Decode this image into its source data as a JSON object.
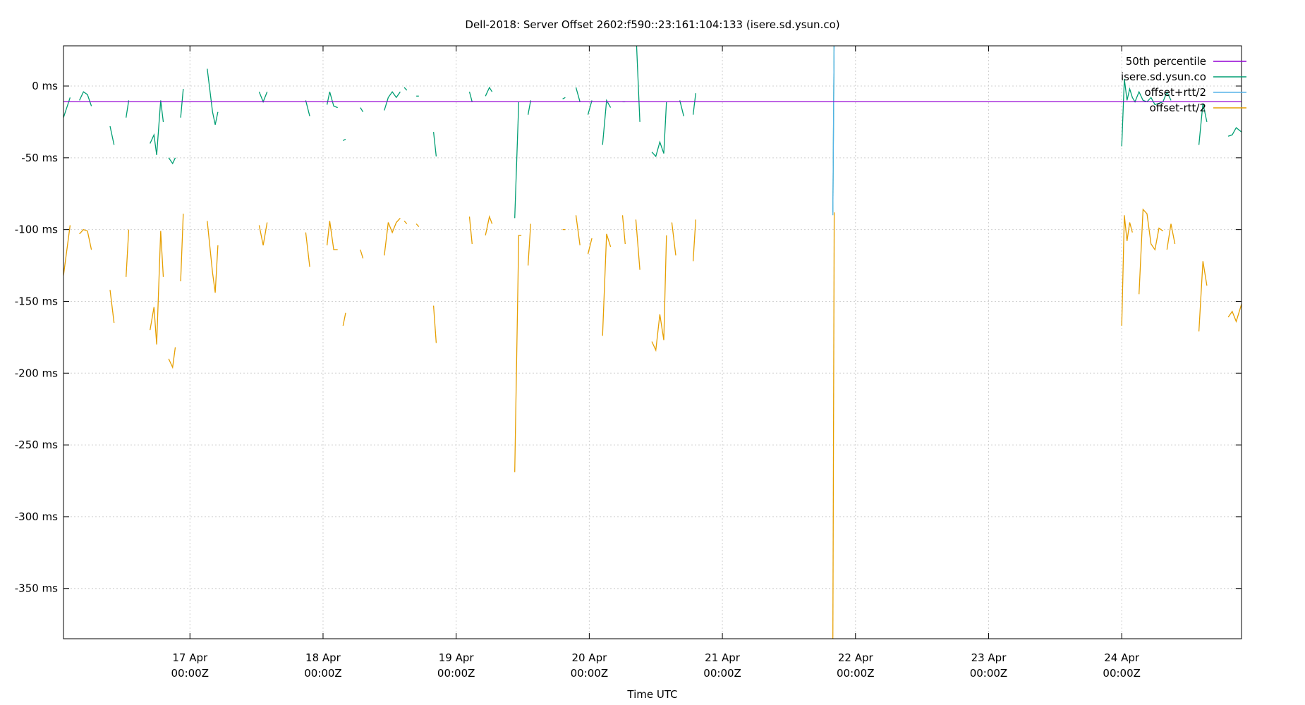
{
  "chart_data": {
    "type": "line",
    "title": "Dell-2018: Server Offset 2602:f590::23:161:104:133 (isere.sd.ysun.co)",
    "xlabel": "Time UTC",
    "ylabel": "",
    "grid": true,
    "legend_position": "top-right",
    "x_domain_days": [
      -0.95,
      7.9
    ],
    "ylim": [
      -385,
      28
    ],
    "y_ticks": [
      {
        "v": 0,
        "label": "0 ms"
      },
      {
        "v": -50,
        "label": "-50 ms"
      },
      {
        "v": -100,
        "label": "-100 ms"
      },
      {
        "v": -150,
        "label": "-150 ms"
      },
      {
        "v": -200,
        "label": "-200 ms"
      },
      {
        "v": -250,
        "label": "-250 ms"
      },
      {
        "v": -300,
        "label": "-300 ms"
      },
      {
        "v": -350,
        "label": "-350 ms"
      }
    ],
    "x_ticks": [
      {
        "v": 0,
        "line1": "17 Apr",
        "line2": "00:00Z"
      },
      {
        "v": 1,
        "line1": "18 Apr",
        "line2": "00:00Z"
      },
      {
        "v": 2,
        "line1": "19 Apr",
        "line2": "00:00Z"
      },
      {
        "v": 3,
        "line1": "20 Apr",
        "line2": "00:00Z"
      },
      {
        "v": 4,
        "line1": "21 Apr",
        "line2": "00:00Z"
      },
      {
        "v": 5,
        "line1": "22 Apr",
        "line2": "00:00Z"
      },
      {
        "v": 6,
        "line1": "23 Apr",
        "line2": "00:00Z"
      },
      {
        "v": 7,
        "line1": "24 Apr",
        "line2": "00:00Z"
      }
    ],
    "series": [
      {
        "name": "50th percentile",
        "color": "#9400d3",
        "segments": [
          [
            [
              -0.95,
              -11
            ],
            [
              7.9,
              -11
            ]
          ]
        ]
      },
      {
        "name": "isere.sd.ysun.co",
        "color": "#009e73",
        "segments": [
          [
            [
              -0.95,
              -22
            ],
            [
              -0.9,
              -8
            ]
          ],
          [
            [
              -0.83,
              -10
            ],
            [
              -0.8,
              -4
            ],
            [
              -0.77,
              -6
            ],
            [
              -0.74,
              -14
            ]
          ],
          [
            [
              -0.6,
              -28
            ],
            [
              -0.57,
              -41
            ]
          ],
          [
            [
              -0.48,
              -22
            ],
            [
              -0.46,
              -10
            ]
          ],
          [
            [
              -0.3,
              -40
            ],
            [
              -0.27,
              -34
            ],
            [
              -0.25,
              -48
            ],
            [
              -0.22,
              -10
            ],
            [
              -0.2,
              -25
            ]
          ],
          [
            [
              -0.16,
              -50
            ],
            [
              -0.13,
              -54
            ],
            [
              -0.11,
              -50
            ]
          ],
          [
            [
              -0.07,
              -22
            ],
            [
              -0.05,
              -2
            ]
          ],
          [
            [
              0.13,
              12
            ],
            [
              0.17,
              -18
            ],
            [
              0.19,
              -27
            ],
            [
              0.21,
              -18
            ]
          ],
          [
            [
              0.52,
              -4
            ],
            [
              0.55,
              -11
            ],
            [
              0.58,
              -4
            ]
          ],
          [
            [
              0.87,
              -10
            ],
            [
              0.9,
              -21
            ]
          ],
          [
            [
              1.03,
              -13
            ],
            [
              1.05,
              -4
            ],
            [
              1.08,
              -14
            ],
            [
              1.11,
              -15
            ]
          ],
          [
            [
              1.15,
              -38
            ],
            [
              1.17,
              -37
            ]
          ],
          [
            [
              1.28,
              -15
            ],
            [
              1.3,
              -18
            ]
          ],
          [
            [
              1.46,
              -17
            ],
            [
              1.49,
              -8
            ],
            [
              1.52,
              -4
            ],
            [
              1.55,
              -8
            ],
            [
              1.58,
              -4
            ]
          ],
          [
            [
              1.61,
              -1
            ],
            [
              1.63,
              -3
            ]
          ],
          [
            [
              1.7,
              -7
            ],
            [
              1.72,
              -7
            ]
          ],
          [
            [
              1.83,
              -32
            ],
            [
              1.85,
              -49
            ]
          ],
          [
            [
              2.1,
              -4
            ],
            [
              2.12,
              -11
            ]
          ],
          [
            [
              2.22,
              -7
            ],
            [
              2.25,
              -1
            ],
            [
              2.27,
              -4
            ]
          ],
          [
            [
              2.44,
              -92
            ],
            [
              2.47,
              -11
            ]
          ],
          [
            [
              2.54,
              -20
            ],
            [
              2.56,
              -10
            ]
          ],
          [
            [
              2.8,
              -9
            ],
            [
              2.82,
              -8
            ]
          ],
          [
            [
              2.9,
              -1
            ],
            [
              2.93,
              -11
            ]
          ],
          [
            [
              2.99,
              -20
            ],
            [
              3.02,
              -10
            ]
          ],
          [
            [
              3.1,
              -41
            ],
            [
              3.13,
              -10
            ],
            [
              3.16,
              -15
            ]
          ],
          [
            [
              3.25,
              -11
            ],
            [
              3.27,
              -11
            ]
          ],
          [
            [
              3.35,
              40
            ],
            [
              3.38,
              -25
            ]
          ],
          [
            [
              3.47,
              -46
            ],
            [
              3.5,
              -49
            ],
            [
              3.53,
              -39
            ],
            [
              3.56,
              -47
            ],
            [
              3.58,
              -11
            ]
          ],
          [
            [
              3.68,
              -10
            ],
            [
              3.71,
              -21
            ]
          ],
          [
            [
              3.78,
              -20
            ],
            [
              3.8,
              -5
            ]
          ],
          [
            [
              4.83,
              -88
            ],
            [
              4.84,
              40
            ]
          ],
          [
            [
              7.0,
              -42
            ],
            [
              7.02,
              5
            ],
            [
              7.04,
              -10
            ],
            [
              7.06,
              -2
            ],
            [
              7.08,
              -8
            ],
            [
              7.1,
              -11
            ],
            [
              7.13,
              -4
            ],
            [
              7.16,
              -10
            ],
            [
              7.19,
              -11
            ],
            [
              7.22,
              -8
            ],
            [
              7.25,
              -13
            ],
            [
              7.28,
              -12
            ],
            [
              7.31,
              -11
            ],
            [
              7.34,
              -4
            ],
            [
              7.37,
              -10
            ]
          ],
          [
            [
              7.58,
              -41
            ],
            [
              7.61,
              -12
            ],
            [
              7.64,
              -25
            ]
          ],
          [
            [
              7.8,
              -35
            ],
            [
              7.83,
              -34
            ],
            [
              7.86,
              -29
            ],
            [
              7.9,
              -32
            ]
          ]
        ]
      },
      {
        "name": "offset+rtt/2",
        "color": "#56b4e9",
        "segments": [
          [
            [
              4.83,
              -90
            ],
            [
              4.84,
              40
            ]
          ]
        ]
      },
      {
        "name": "offset-rtt/2",
        "color": "#e69f00",
        "segments": [
          [
            [
              -0.95,
              -132
            ],
            [
              -0.9,
              -97
            ]
          ],
          [
            [
              -0.83,
              -103
            ],
            [
              -0.8,
              -100
            ],
            [
              -0.77,
              -101
            ],
            [
              -0.74,
              -114
            ]
          ],
          [
            [
              -0.6,
              -142
            ],
            [
              -0.57,
              -165
            ]
          ],
          [
            [
              -0.48,
              -133
            ],
            [
              -0.46,
              -100
            ]
          ],
          [
            [
              -0.3,
              -170
            ],
            [
              -0.27,
              -154
            ],
            [
              -0.25,
              -180
            ],
            [
              -0.22,
              -101
            ],
            [
              -0.2,
              -133
            ]
          ],
          [
            [
              -0.16,
              -190
            ],
            [
              -0.13,
              -196
            ],
            [
              -0.11,
              -182
            ]
          ],
          [
            [
              -0.07,
              -136
            ],
            [
              -0.05,
              -89
            ]
          ],
          [
            [
              0.13,
              -94
            ],
            [
              0.17,
              -130
            ],
            [
              0.19,
              -144
            ],
            [
              0.21,
              -111
            ]
          ],
          [
            [
              0.52,
              -97
            ],
            [
              0.55,
              -111
            ],
            [
              0.58,
              -95
            ]
          ],
          [
            [
              0.87,
              -102
            ],
            [
              0.9,
              -126
            ]
          ],
          [
            [
              1.03,
              -111
            ],
            [
              1.05,
              -94
            ],
            [
              1.08,
              -114
            ],
            [
              1.11,
              -114
            ]
          ],
          [
            [
              1.15,
              -167
            ],
            [
              1.17,
              -158
            ]
          ],
          [
            [
              1.28,
              -114
            ],
            [
              1.3,
              -120
            ]
          ],
          [
            [
              1.46,
              -118
            ],
            [
              1.49,
              -95
            ],
            [
              1.52,
              -102
            ],
            [
              1.55,
              -95
            ],
            [
              1.58,
              -92
            ]
          ],
          [
            [
              1.61,
              -94
            ],
            [
              1.63,
              -96
            ]
          ],
          [
            [
              1.7,
              -96
            ],
            [
              1.72,
              -98
            ]
          ],
          [
            [
              1.83,
              -153
            ],
            [
              1.85,
              -179
            ]
          ],
          [
            [
              2.1,
              -91
            ],
            [
              2.12,
              -110
            ]
          ],
          [
            [
              2.22,
              -104
            ],
            [
              2.25,
              -91
            ],
            [
              2.27,
              -96
            ]
          ],
          [
            [
              2.44,
              -269
            ],
            [
              2.47,
              -104
            ],
            [
              2.49,
              -104
            ]
          ],
          [
            [
              2.54,
              -125
            ],
            [
              2.56,
              -96
            ]
          ],
          [
            [
              2.8,
              -100
            ],
            [
              2.82,
              -100
            ]
          ],
          [
            [
              2.9,
              -90
            ],
            [
              2.93,
              -111
            ]
          ],
          [
            [
              2.99,
              -117
            ],
            [
              3.02,
              -106
            ]
          ],
          [
            [
              3.1,
              -174
            ],
            [
              3.13,
              -103
            ],
            [
              3.16,
              -112
            ]
          ],
          [
            [
              3.25,
              -90
            ],
            [
              3.27,
              -110
            ]
          ],
          [
            [
              3.35,
              -93
            ],
            [
              3.38,
              -128
            ]
          ],
          [
            [
              3.47,
              -178
            ],
            [
              3.5,
              -184
            ],
            [
              3.53,
              -159
            ],
            [
              3.56,
              -177
            ],
            [
              3.58,
              -104
            ]
          ],
          [
            [
              3.62,
              -95
            ],
            [
              3.65,
              -118
            ]
          ],
          [
            [
              3.78,
              -122
            ],
            [
              3.8,
              -93
            ]
          ],
          [
            [
              4.83,
              -385
            ],
            [
              4.84,
              -88
            ]
          ],
          [
            [
              7.0,
              -167
            ],
            [
              7.02,
              -90
            ],
            [
              7.04,
              -108
            ],
            [
              7.06,
              -95
            ],
            [
              7.08,
              -102
            ]
          ],
          [
            [
              7.13,
              -145
            ],
            [
              7.16,
              -86
            ],
            [
              7.19,
              -89
            ],
            [
              7.22,
              -110
            ],
            [
              7.25,
              -114
            ],
            [
              7.28,
              -99
            ],
            [
              7.31,
              -101
            ]
          ],
          [
            [
              7.34,
              -114
            ],
            [
              7.37,
              -96
            ],
            [
              7.4,
              -110
            ]
          ],
          [
            [
              7.58,
              -171
            ],
            [
              7.61,
              -122
            ],
            [
              7.64,
              -139
            ]
          ],
          [
            [
              7.8,
              -161
            ],
            [
              7.83,
              -157
            ],
            [
              7.86,
              -164
            ],
            [
              7.9,
              -152
            ]
          ]
        ]
      }
    ]
  }
}
